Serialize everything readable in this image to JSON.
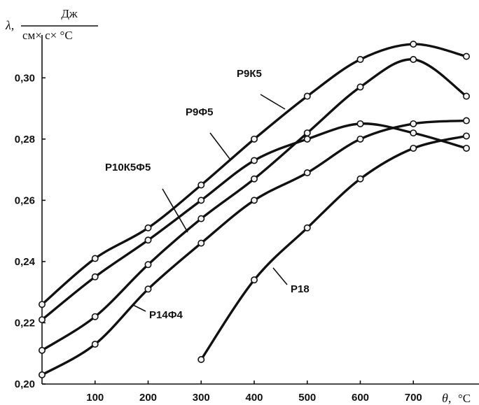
{
  "chart_data": {
    "type": "line",
    "ylabel_symbol": "λ,",
    "ylabel_unit_num": "Дж",
    "ylabel_unit_den": "см× с×  °С",
    "xlabel_symbol": "θ,",
    "xlabel_unit": "°С",
    "x_ticks": [
      100,
      200,
      300,
      400,
      500,
      600,
      700
    ],
    "x_tick_labels": [
      "100",
      "200",
      "300",
      "400",
      "500",
      "600",
      "700"
    ],
    "y_ticks": [
      0.2,
      0.22,
      0.24,
      0.26,
      0.28,
      0.3
    ],
    "y_tick_labels": [
      "0,20",
      "0,22",
      "0,24",
      "0,26",
      "0,28",
      "0,30"
    ],
    "xlim": [
      0,
      800
    ],
    "ylim": [
      0.2,
      0.314
    ],
    "series": [
      {
        "name": "Р9К5",
        "x": [
          0,
          100,
          200,
          300,
          400,
          500,
          600,
          700,
          800
        ],
        "y": [
          0.226,
          0.241,
          0.251,
          0.265,
          0.28,
          0.294,
          0.306,
          0.311,
          0.307
        ]
      },
      {
        "name": "Р9Ф5",
        "x": [
          0,
          100,
          200,
          300,
          400,
          500,
          600,
          700,
          800
        ],
        "y": [
          0.221,
          0.235,
          0.247,
          0.26,
          0.273,
          0.28,
          0.285,
          0.282,
          0.277
        ]
      },
      {
        "name": "Р10К5Ф5",
        "x": [
          0,
          100,
          200,
          300,
          400,
          500,
          600,
          700,
          800
        ],
        "y": [
          0.211,
          0.222,
          0.239,
          0.254,
          0.267,
          0.282,
          0.297,
          0.306,
          0.294
        ]
      },
      {
        "name": "Р14Ф4",
        "x": [
          0,
          100,
          200,
          300,
          400,
          500,
          600,
          700,
          800
        ],
        "y": [
          0.203,
          0.213,
          0.231,
          0.246,
          0.26,
          0.269,
          0.28,
          0.285,
          0.286
        ]
      },
      {
        "name": "Р18",
        "x": [
          300,
          400,
          500,
          600,
          700,
          800
        ],
        "y": [
          0.208,
          0.234,
          0.251,
          0.267,
          0.277,
          0.281
        ]
      }
    ]
  }
}
